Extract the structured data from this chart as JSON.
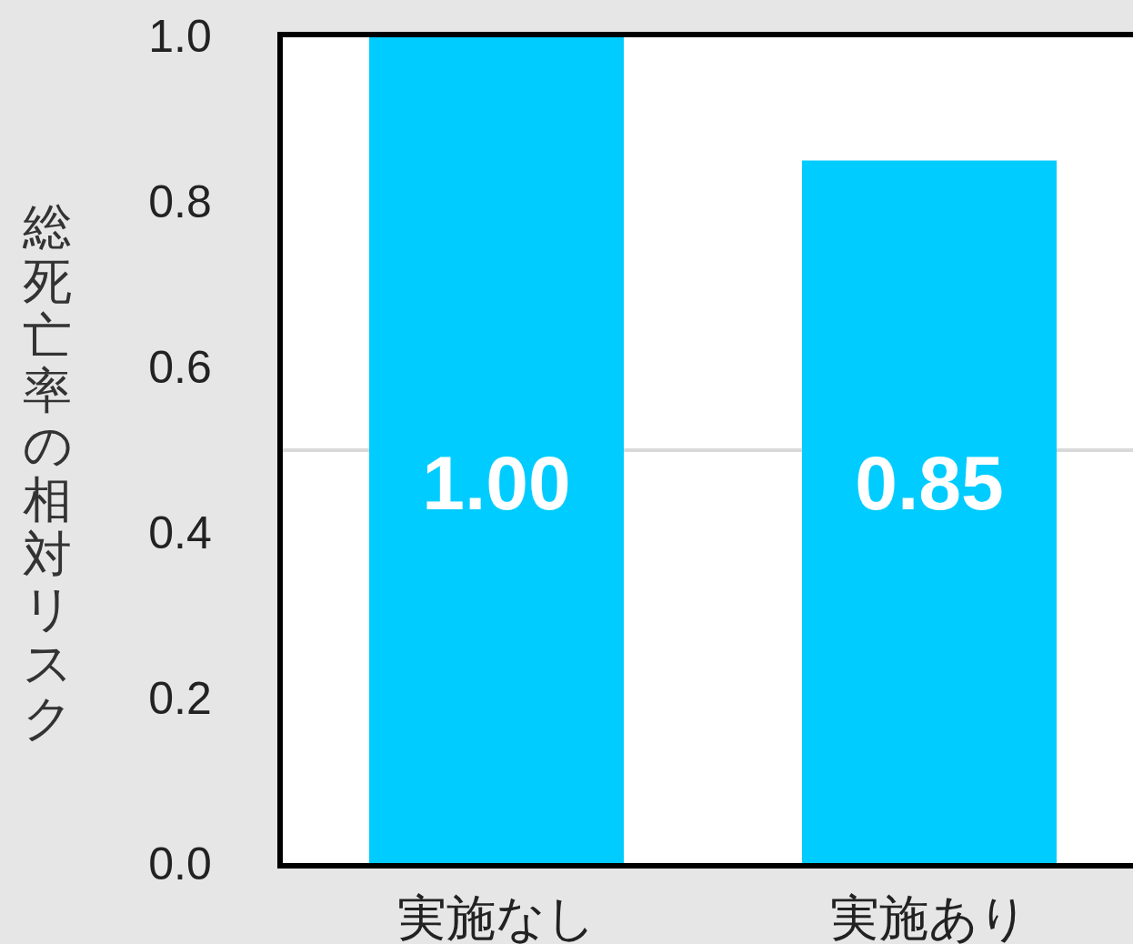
{
  "chart_data": {
    "type": "bar",
    "ylabel": "総死亡率の相対リスク",
    "categories": [
      "実施なし",
      "実施あり"
    ],
    "values": [
      1.0,
      0.85
    ],
    "color": "#00ccff",
    "value_labels": [
      "1.00",
      "0.85"
    ],
    "ylim": [
      0,
      1
    ],
    "yticks": [
      {
        "value": 0,
        "label": "0.0"
      },
      0.2,
      0.4,
      0.6,
      0.8,
      {
        "value": 1,
        "label": "1.0"
      }
    ],
    "ref_lines": [
      {
        "axis": "y",
        "value": 0.5,
        "color": "#d9d9d9"
      }
    ],
    "grid": false
  }
}
